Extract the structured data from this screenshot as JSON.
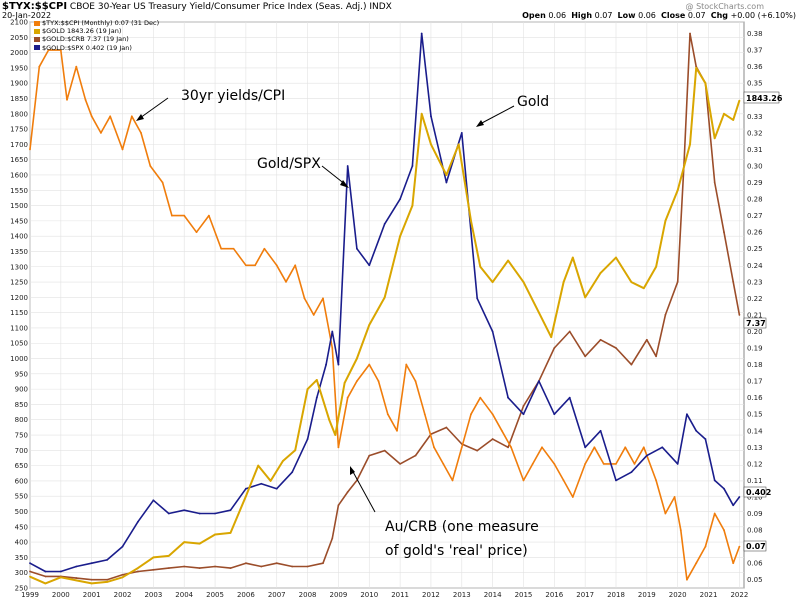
{
  "header": {
    "symbol": "$TYX:$$CPI",
    "description": "CBOE 30-Year US Treasury Yield/Consumer Price Index (Seas. Adj.) INDX",
    "date": "20-Jan-2022",
    "watermark": "@ StockCharts.com",
    "quote": {
      "open_label": "Open",
      "open": "0.06",
      "high_label": "High",
      "high": "0.07",
      "low_label": "Low",
      "low": "0.06",
      "close_label": "Close",
      "close": "0.07",
      "chg_label": "Chg",
      "chg": "+0.00 (+6.10%)"
    }
  },
  "legend": [
    {
      "text": "$TYX:$$CPI (Monthly) 0.07 (31 Dec)",
      "color": "#f07d0c"
    },
    {
      "text": "$GOLD 1843.26 (19 Jan)",
      "color": "#d9a600"
    },
    {
      "text": "$GOLD:$CRB 7.37 (19 Jan)",
      "color": "#9b4d2a"
    },
    {
      "text": "$GOLD:$SPX 0.402 (19 Jan)",
      "color": "#1a1d8c"
    }
  ],
  "annotations": [
    {
      "text": "30yr yields/CPI"
    },
    {
      "text": "Gold"
    },
    {
      "text": "Gold/SPX"
    },
    {
      "text": "Au/CRB (one measure"
    },
    {
      "text": "of gold's 'real' price)"
    }
  ],
  "price_tags": {
    "gold": "1843.26",
    "crb": "7.37",
    "spx": "0.402",
    "yields": "0.07"
  },
  "chart_data": {
    "type": "line",
    "x_ticks": [
      "1999",
      "2000",
      "2001",
      "2002",
      "2003",
      "2004",
      "2005",
      "2006",
      "2007",
      "2008",
      "2009",
      "2010",
      "2011",
      "2012",
      "2013",
      "2014",
      "2015",
      "2016",
      "2017",
      "2018",
      "2019",
      "2020",
      "2021",
      "2022"
    ],
    "left_axis": {
      "ticks": [
        250,
        300,
        350,
        400,
        450,
        500,
        550,
        600,
        650,
        700,
        750,
        800,
        850,
        900,
        950,
        1000,
        1050,
        1100,
        1150,
        1200,
        1250,
        1300,
        1350,
        1400,
        1450,
        1500,
        1550,
        1600,
        1650,
        1700,
        1750,
        1800,
        1850,
        1900,
        1950,
        2000,
        2050,
        2100
      ],
      "ylim": [
        250,
        2100
      ]
    },
    "right_axis": {
      "ticks": [
        "0.05",
        "0.06",
        "0.07",
        "0.08",
        "0.09",
        "0.10",
        "0.11",
        "0.12",
        "0.13",
        "0.14",
        "0.15",
        "0.16",
        "0.17",
        "0.18",
        "0.19",
        "0.20",
        "0.21",
        "0.22",
        "0.23",
        "0.24",
        "0.25",
        "0.26",
        "0.27",
        "0.28",
        "0.29",
        "0.30",
        "0.31",
        "0.32",
        "0.33",
        "0.34",
        "0.35",
        "0.36",
        "0.37",
        "0.38"
      ],
      "ylim": [
        0.045,
        0.387
      ]
    },
    "grid": true,
    "series": [
      {
        "name": "$TYX:$$CPI (Monthly)",
        "axis": "right",
        "color": "#f07d0c",
        "x": [
          1999.0,
          1999.3,
          1999.6,
          2000.0,
          2000.2,
          2000.5,
          2000.8,
          2001.0,
          2001.3,
          2001.6,
          2002.0,
          2002.3,
          2002.6,
          2002.9,
          2003.3,
          2003.6,
          2004.0,
          2004.4,
          2004.8,
          2005.2,
          2005.6,
          2006.0,
          2006.3,
          2006.6,
          2007.0,
          2007.3,
          2007.6,
          2007.9,
          2008.2,
          2008.5,
          2008.8,
          2009.0,
          2009.3,
          2009.6,
          2010.0,
          2010.3,
          2010.6,
          2010.9,
          2011.2,
          2011.5,
          2011.8,
          2012.1,
          2012.4,
          2012.7,
          2013.0,
          2013.3,
          2013.6,
          2014.0,
          2014.3,
          2014.6,
          2015.0,
          2015.3,
          2015.6,
          2016.0,
          2016.3,
          2016.6,
          2017.0,
          2017.3,
          2017.6,
          2018.0,
          2018.3,
          2018.6,
          2018.9,
          2019.3,
          2019.6,
          2019.9,
          2020.1,
          2020.3,
          2020.6,
          2020.9,
          2021.2,
          2021.5,
          2021.8,
          2022.0
        ],
        "y": [
          0.31,
          0.36,
          0.37,
          0.37,
          0.34,
          0.36,
          0.34,
          0.33,
          0.32,
          0.33,
          0.31,
          0.33,
          0.32,
          0.3,
          0.29,
          0.27,
          0.27,
          0.26,
          0.27,
          0.25,
          0.25,
          0.24,
          0.24,
          0.25,
          0.24,
          0.23,
          0.24,
          0.22,
          0.21,
          0.22,
          0.19,
          0.13,
          0.16,
          0.17,
          0.18,
          0.17,
          0.15,
          0.14,
          0.18,
          0.17,
          0.15,
          0.13,
          0.12,
          0.11,
          0.13,
          0.15,
          0.16,
          0.15,
          0.14,
          0.13,
          0.11,
          0.12,
          0.13,
          0.12,
          0.11,
          0.1,
          0.12,
          0.13,
          0.12,
          0.12,
          0.13,
          0.12,
          0.13,
          0.11,
          0.09,
          0.1,
          0.08,
          0.05,
          0.06,
          0.07,
          0.09,
          0.08,
          0.06,
          0.07
        ]
      },
      {
        "name": "$GOLD",
        "axis": "left",
        "color": "#d9a600",
        "x": [
          1999.0,
          1999.5,
          2000.0,
          2000.5,
          2001.0,
          2001.5,
          2002.0,
          2002.5,
          2003.0,
          2003.5,
          2004.0,
          2004.5,
          2005.0,
          2005.5,
          2006.0,
          2006.4,
          2006.8,
          2007.2,
          2007.6,
          2008.0,
          2008.3,
          2008.7,
          2008.9,
          2009.2,
          2009.6,
          2010.0,
          2010.5,
          2011.0,
          2011.4,
          2011.7,
          2012.0,
          2012.5,
          2012.9,
          2013.3,
          2013.6,
          2014.0,
          2014.5,
          2015.0,
          2015.5,
          2015.9,
          2016.3,
          2016.6,
          2017.0,
          2017.5,
          2018.0,
          2018.5,
          2018.9,
          2019.3,
          2019.6,
          2020.0,
          2020.4,
          2020.6,
          2020.9,
          2021.2,
          2021.5,
          2021.8,
          2022.0
        ],
        "y": [
          287,
          265,
          285,
          275,
          265,
          270,
          285,
          315,
          350,
          355,
          400,
          395,
          425,
          430,
          550,
          650,
          600,
          665,
          700,
          900,
          930,
          800,
          750,
          920,
          1000,
          1110,
          1200,
          1400,
          1500,
          1800,
          1700,
          1600,
          1700,
          1450,
          1300,
          1250,
          1320,
          1250,
          1150,
          1070,
          1250,
          1330,
          1200,
          1280,
          1330,
          1250,
          1230,
          1300,
          1450,
          1550,
          1700,
          1950,
          1900,
          1720,
          1800,
          1780,
          1843
        ]
      },
      {
        "name": "$GOLD:$CRB",
        "axis": "right",
        "color": "#9b4d2a",
        "x": [
          1999.0,
          1999.5,
          2000.0,
          2000.5,
          2001.0,
          2001.5,
          2002.0,
          2002.5,
          2003.0,
          2003.5,
          2004.0,
          2004.5,
          2005.0,
          2005.5,
          2006.0,
          2006.5,
          2007.0,
          2007.5,
          2008.0,
          2008.5,
          2008.8,
          2009.0,
          2009.3,
          2009.6,
          2010.0,
          2010.5,
          2011.0,
          2011.5,
          2012.0,
          2012.5,
          2013.0,
          2013.5,
          2014.0,
          2014.5,
          2015.0,
          2015.5,
          2016.0,
          2016.5,
          2017.0,
          2017.5,
          2018.0,
          2018.5,
          2019.0,
          2019.3,
          2019.6,
          2020.0,
          2020.2,
          2020.4,
          2020.6,
          2020.9,
          2021.2,
          2021.5,
          2021.8,
          2022.0
        ],
        "y": [
          0.055,
          0.052,
          0.052,
          0.051,
          0.05,
          0.05,
          0.053,
          0.055,
          0.056,
          0.057,
          0.058,
          0.057,
          0.058,
          0.057,
          0.06,
          0.058,
          0.06,
          0.058,
          0.058,
          0.06,
          0.075,
          0.095,
          0.103,
          0.11,
          0.125,
          0.128,
          0.12,
          0.125,
          0.138,
          0.142,
          0.132,
          0.128,
          0.135,
          0.13,
          0.155,
          0.17,
          0.19,
          0.2,
          0.185,
          0.195,
          0.19,
          0.18,
          0.195,
          0.185,
          0.21,
          0.23,
          0.3,
          0.38,
          0.36,
          0.35,
          0.29,
          0.26,
          0.23,
          0.21
        ]
      },
      {
        "name": "$GOLD:$SPX",
        "axis": "right",
        "color": "#1a1d8c",
        "x": [
          1999.0,
          1999.5,
          2000.0,
          2000.5,
          2001.0,
          2001.5,
          2002.0,
          2002.5,
          2003.0,
          2003.5,
          2004.0,
          2004.5,
          2005.0,
          2005.5,
          2006.0,
          2006.5,
          2007.0,
          2007.5,
          2008.0,
          2008.3,
          2008.6,
          2008.8,
          2009.0,
          2009.3,
          2009.6,
          2010.0,
          2010.5,
          2011.0,
          2011.4,
          2011.7,
          2012.0,
          2012.5,
          2013.0,
          2013.5,
          2014.0,
          2014.5,
          2015.0,
          2015.5,
          2016.0,
          2016.5,
          2017.0,
          2017.5,
          2018.0,
          2018.5,
          2019.0,
          2019.5,
          2020.0,
          2020.3,
          2020.6,
          2020.9,
          2021.2,
          2021.5,
          2021.8,
          2022.0
        ],
        "y": [
          0.06,
          0.055,
          0.055,
          0.058,
          0.06,
          0.062,
          0.07,
          0.085,
          0.098,
          0.09,
          0.092,
          0.09,
          0.09,
          0.092,
          0.105,
          0.108,
          0.105,
          0.115,
          0.135,
          0.16,
          0.18,
          0.2,
          0.18,
          0.3,
          0.25,
          0.24,
          0.265,
          0.28,
          0.3,
          0.38,
          0.33,
          0.29,
          0.32,
          0.22,
          0.2,
          0.16,
          0.15,
          0.17,
          0.15,
          0.16,
          0.13,
          0.14,
          0.11,
          0.115,
          0.125,
          0.13,
          0.12,
          0.15,
          0.14,
          0.135,
          0.11,
          0.105,
          0.095,
          0.1
        ]
      }
    ]
  }
}
